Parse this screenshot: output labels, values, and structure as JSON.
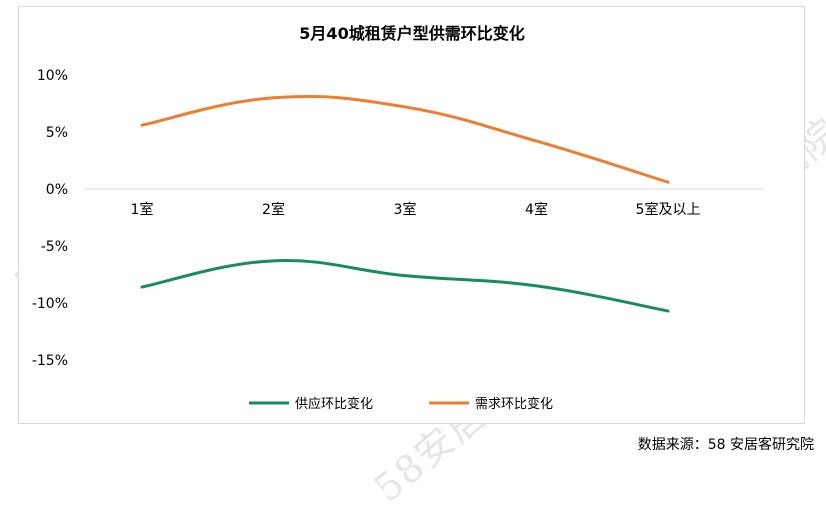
{
  "watermark_text": "58安居客研究院",
  "source_text": "数据来源：58 安居客研究院",
  "colors": {
    "supply": "#1a8c5a",
    "demand": "#ed7d31",
    "axis": "#d9d9d9"
  },
  "chart_data": {
    "type": "line",
    "title": "5月40城租赁户型供需环比变化",
    "categories": [
      "1室",
      "2室",
      "3室",
      "4室",
      "5室及以上"
    ],
    "ylim": [
      -15,
      10
    ],
    "yticks": [
      10,
      5,
      0,
      -5,
      -10,
      -15
    ],
    "ytick_labels": [
      "10%",
      "5%",
      "0%",
      "-5%",
      "-10%",
      "-15%"
    ],
    "legend_position": "bottom",
    "grid": false,
    "series": [
      {
        "name": "供应环比变化",
        "values": [
          -8.6,
          -6.3,
          -7.6,
          -8.5,
          -10.7
        ],
        "color": "#1a8c5a"
      },
      {
        "name": "需求环比变化",
        "values": [
          5.6,
          8.0,
          7.2,
          4.2,
          0.6
        ],
        "color": "#ed7d31"
      }
    ]
  }
}
